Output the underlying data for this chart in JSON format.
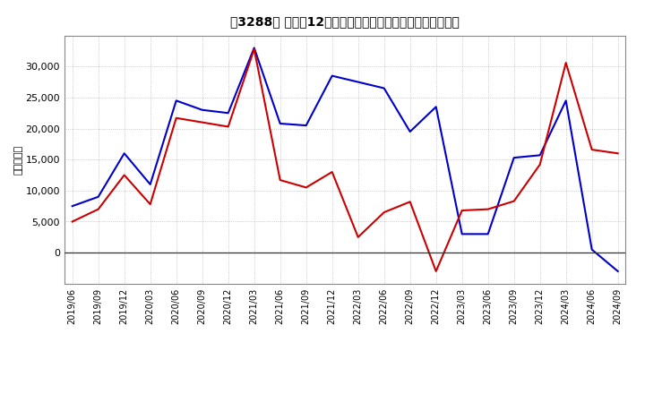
{
  "title": "［3288］ 利益だ12か月移動合計の対前年同期増減額の推移",
  "ylabel": "（百万円）",
  "background_color": "#ffffff",
  "plot_bg_color": "#ffffff",
  "grid_color": "#aaaaaa",
  "blue_color": "#0000cc",
  "red_color": "#cc0000",
  "x_labels": [
    "2019/06",
    "2019/09",
    "2019/12",
    "2020/03",
    "2020/06",
    "2020/09",
    "2020/12",
    "2021/03",
    "2021/06",
    "2021/09",
    "2021/12",
    "2022/03",
    "2022/06",
    "2022/09",
    "2022/12",
    "2023/03",
    "2023/06",
    "2023/09",
    "2023/12",
    "2024/03",
    "2024/06",
    "2024/09"
  ],
  "keijo_rieki": [
    7500,
    9000,
    16000,
    11000,
    24500,
    23000,
    22500,
    33000,
    20800,
    20500,
    28500,
    27500,
    26500,
    19500,
    23500,
    3000,
    3000,
    15300,
    15700,
    24500,
    500,
    -3000
  ],
  "junrieki": [
    5000,
    7000,
    12500,
    7800,
    21700,
    21000,
    20300,
    32800,
    11700,
    10500,
    13000,
    2500,
    6500,
    8200,
    -3000,
    6800,
    7000,
    8300,
    14200,
    30600,
    16600,
    16000
  ],
  "ylim": [
    -5000,
    35000
  ],
  "yticks": [
    0,
    5000,
    10000,
    15000,
    20000,
    25000,
    30000
  ]
}
